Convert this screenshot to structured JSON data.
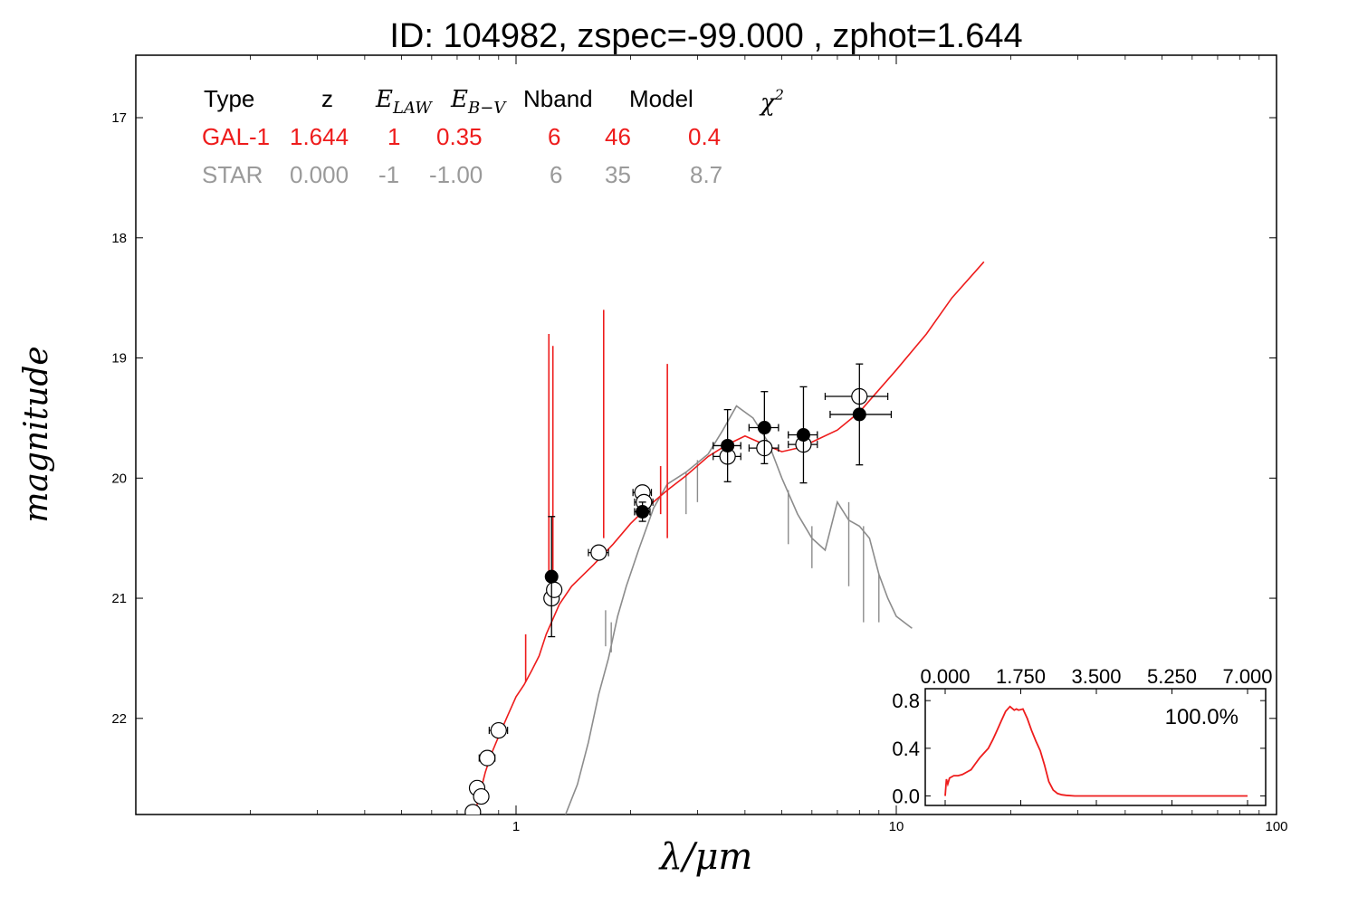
{
  "chart_data": [
    {
      "type": "scatter",
      "title": "ID:  104982, zspec=-99.000 , zphot=1.644",
      "xlabel": "λ/μm",
      "ylabel": "magnitude",
      "x_scale": "log",
      "xlim": [
        0.1,
        100
      ],
      "ylim": [
        22.8,
        16.48
      ],
      "x_tick_labels": [
        "1",
        "10",
        "100"
      ],
      "y_tick_labels": [
        "17",
        "18",
        "19",
        "20",
        "21",
        "22"
      ],
      "legend_table": {
        "headers": [
          "Type",
          "z",
          "E",
          "E",
          "Nband",
          "Model",
          "χ"
        ],
        "header_subscripts": [
          "",
          "",
          "LAW",
          "B−V",
          "",
          "",
          ""
        ],
        "header_superscripts": [
          "",
          "",
          "",
          "",
          "",
          "",
          "2"
        ],
        "rows": [
          {
            "color": "#ee1c1c",
            "cells": [
              "GAL-1",
              "1.644",
              "1",
              "0.35",
              "6",
              "46",
              "0.4"
            ]
          },
          {
            "color": "#9a9a9a",
            "cells": [
              "STAR",
              "0.000",
              "-1",
              "-1.00",
              "6",
              "35",
              "8.7"
            ]
          }
        ]
      },
      "series": [
        {
          "kind": "line",
          "color": "#ee1c1c",
          "points": [
            [
              0.77,
              22.85
            ],
            [
              0.8,
              22.65
            ],
            [
              0.83,
              22.45
            ],
            [
              0.86,
              22.3
            ],
            [
              0.9,
              22.15
            ],
            [
              0.95,
              21.98
            ],
            [
              1.0,
              21.82
            ],
            [
              1.05,
              21.72
            ],
            [
              1.1,
              21.6
            ],
            [
              1.15,
              21.48
            ],
            [
              1.2,
              21.3
            ],
            [
              1.3,
              21.05
            ],
            [
              1.4,
              20.9
            ],
            [
              1.6,
              20.72
            ],
            [
              1.8,
              20.55
            ],
            [
              2.0,
              20.38
            ],
            [
              2.2,
              20.25
            ],
            [
              2.5,
              20.1
            ],
            [
              2.8,
              19.98
            ],
            [
              3.2,
              19.82
            ],
            [
              3.6,
              19.72
            ],
            [
              4.0,
              19.65
            ],
            [
              4.5,
              19.72
            ],
            [
              5.0,
              19.78
            ],
            [
              5.5,
              19.75
            ],
            [
              6.0,
              19.7
            ],
            [
              7.0,
              19.6
            ],
            [
              8.0,
              19.45
            ],
            [
              10,
              19.1
            ],
            [
              12,
              18.8
            ],
            [
              14,
              18.5
            ],
            [
              17,
              18.2
            ]
          ],
          "spikes": [
            [
              1.22,
              20.8,
              18.8
            ],
            [
              1.25,
              21.0,
              18.9
            ],
            [
              1.7,
              20.5,
              18.6
            ],
            [
              2.5,
              20.5,
              19.05
            ],
            [
              2.4,
              20.3,
              19.9
            ],
            [
              1.06,
              21.7,
              21.3
            ]
          ]
        },
        {
          "kind": "line",
          "color": "#8c8c8c",
          "points": [
            [
              1.35,
              22.8
            ],
            [
              1.45,
              22.55
            ],
            [
              1.55,
              22.2
            ],
            [
              1.65,
              21.8
            ],
            [
              1.75,
              21.5
            ],
            [
              1.85,
              21.15
            ],
            [
              1.95,
              20.9
            ],
            [
              2.1,
              20.6
            ],
            [
              2.3,
              20.25
            ],
            [
              2.5,
              20.05
            ],
            [
              2.8,
              19.95
            ],
            [
              3.2,
              19.8
            ],
            [
              3.5,
              19.6
            ],
            [
              3.8,
              19.4
            ],
            [
              4.2,
              19.5
            ],
            [
              4.6,
              19.7
            ],
            [
              5.0,
              20.0
            ],
            [
              5.5,
              20.3
            ],
            [
              6.0,
              20.5
            ],
            [
              6.5,
              20.6
            ],
            [
              7.0,
              20.2
            ],
            [
              7.5,
              20.35
            ],
            [
              8.0,
              20.4
            ],
            [
              8.5,
              20.5
            ],
            [
              9.0,
              20.8
            ],
            [
              9.5,
              21.0
            ],
            [
              10.0,
              21.15
            ],
            [
              11.0,
              21.25
            ]
          ],
          "dips": [
            [
              1.72,
              21.1,
              21.4
            ],
            [
              1.78,
              21.2,
              21.45
            ],
            [
              2.8,
              19.95,
              20.3
            ],
            [
              3.0,
              19.85,
              20.2
            ],
            [
              5.2,
              20.1,
              20.55
            ],
            [
              6.0,
              20.4,
              20.75
            ],
            [
              7.5,
              20.2,
              20.9
            ],
            [
              8.2,
              20.4,
              21.2
            ],
            [
              9.0,
              20.8,
              21.2
            ]
          ]
        }
      ],
      "points_observed": [
        {
          "x": 1.24,
          "y": 20.82,
          "yerr": 0.5,
          "xerr_lo": 0.0,
          "xerr_hi": 0.0
        },
        {
          "x": 2.15,
          "y": 20.28,
          "yerr": 0.08,
          "xerr_lo": 0.1,
          "xerr_hi": 0.1
        },
        {
          "x": 3.6,
          "y": 19.73,
          "yerr": 0.3,
          "xerr_lo": 0.3,
          "xerr_hi": 0.3
        },
        {
          "x": 4.5,
          "y": 19.58,
          "yerr": 0.3,
          "xerr_lo": 0.4,
          "xerr_hi": 0.4
        },
        {
          "x": 5.7,
          "y": 19.64,
          "yerr": 0.4,
          "xerr_lo": 0.5,
          "xerr_hi": 0.5
        },
        {
          "x": 8.0,
          "y": 19.47,
          "yerr": 0.42,
          "xerr_lo": 1.3,
          "xerr_hi": 1.7
        }
      ],
      "points_model": [
        {
          "x": 0.77,
          "y": 22.78,
          "xerr": 0.02
        },
        {
          "x": 0.79,
          "y": 22.58,
          "xerr": 0.02
        },
        {
          "x": 0.81,
          "y": 22.65,
          "xerr": 0.02
        },
        {
          "x": 0.84,
          "y": 22.33,
          "xerr": 0.04
        },
        {
          "x": 0.9,
          "y": 22.1,
          "xerr": 0.05
        },
        {
          "x": 1.24,
          "y": 21.0,
          "xerr": 0.05
        },
        {
          "x": 1.26,
          "y": 20.93,
          "xerr": 0.05
        },
        {
          "x": 1.65,
          "y": 20.62,
          "xerr": 0.1
        },
        {
          "x": 2.15,
          "y": 20.12,
          "xerr": 0.12
        },
        {
          "x": 2.17,
          "y": 20.2,
          "xerr": 0.12
        },
        {
          "x": 3.6,
          "y": 19.82,
          "xerr": 0.3
        },
        {
          "x": 4.5,
          "y": 19.75,
          "xerr": 0.4
        },
        {
          "x": 5.7,
          "y": 19.72,
          "xerr": 0.5
        },
        {
          "x": 8.0,
          "y": 19.32,
          "xerr": 1.5
        }
      ]
    },
    {
      "type": "line",
      "title": "",
      "annotation": "100.0%",
      "xlim": [
        0,
        7
      ],
      "ylim": [
        -0.08,
        0.9
      ],
      "x_tick_labels": [
        "0.000",
        "1.750",
        "3.500",
        "5.250",
        "7.000"
      ],
      "y_tick_labels": [
        "0.0",
        "0.4",
        "0.8"
      ],
      "color": "#ee1c1c",
      "x": [
        0.0,
        0.03,
        0.06,
        0.1,
        0.2,
        0.3,
        0.4,
        0.5,
        0.6,
        0.7,
        0.8,
        0.9,
        1.0,
        1.1,
        1.2,
        1.3,
        1.4,
        1.5,
        1.6,
        1.65,
        1.7,
        1.8,
        1.9,
        2.0,
        2.1,
        2.2,
        2.3,
        2.4,
        2.5,
        2.6,
        2.7,
        2.8,
        3.0,
        3.5,
        4.0,
        5.0,
        6.0,
        7.0
      ],
      "y": [
        0.0,
        0.14,
        0.1,
        0.15,
        0.17,
        0.17,
        0.18,
        0.2,
        0.22,
        0.27,
        0.32,
        0.36,
        0.4,
        0.47,
        0.55,
        0.63,
        0.71,
        0.75,
        0.72,
        0.73,
        0.72,
        0.73,
        0.65,
        0.55,
        0.46,
        0.38,
        0.26,
        0.12,
        0.05,
        0.02,
        0.01,
        0.005,
        0.0,
        0.0,
        0.0,
        0.0,
        0.0,
        0.0
      ]
    }
  ]
}
